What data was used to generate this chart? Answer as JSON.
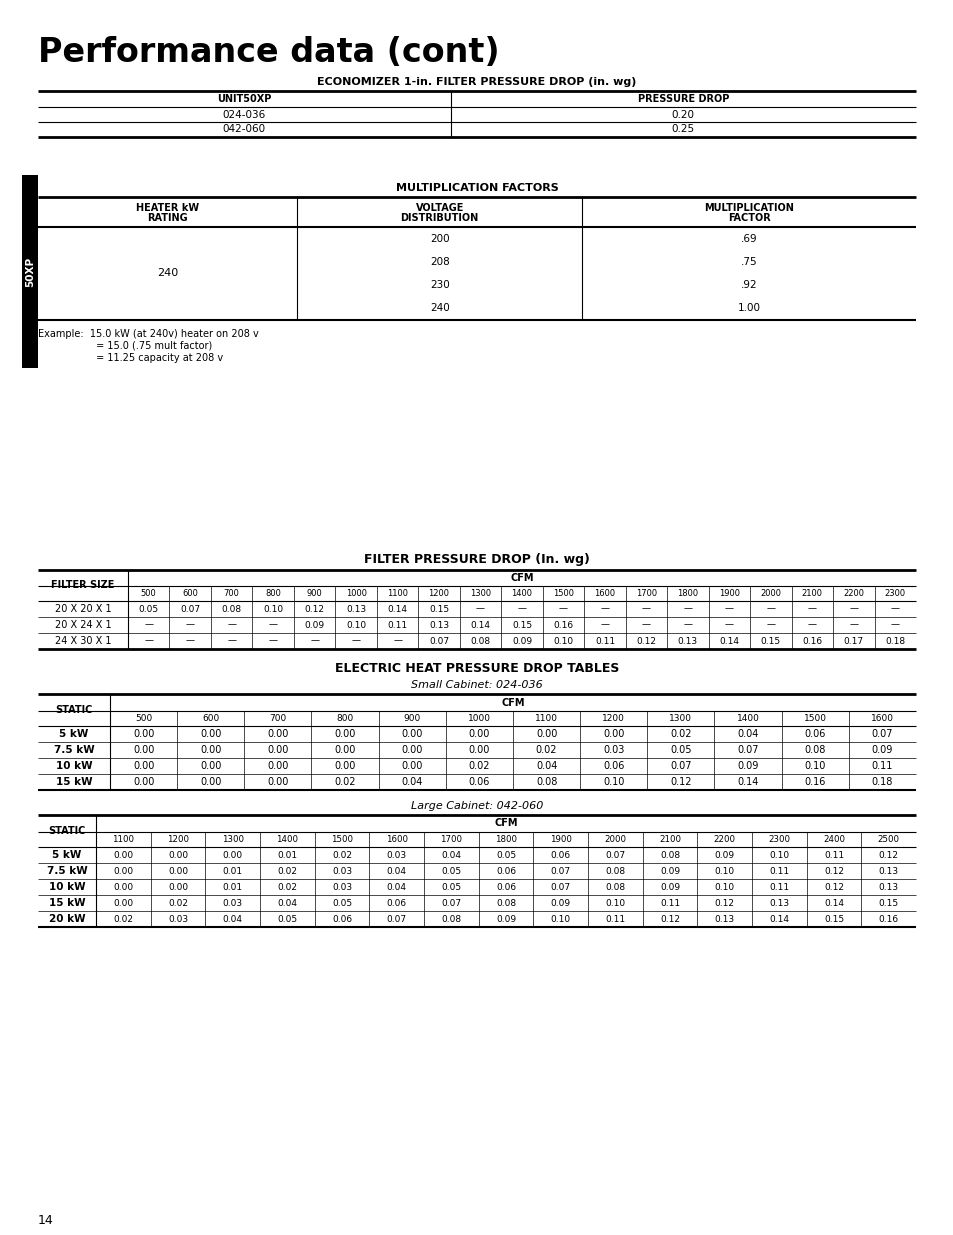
{
  "title": "Performance data (cont)",
  "page_number": "14",
  "section1_title": "ECONOMIZER 1-in. FILTER PRESSURE DROP (in. wg)",
  "econ_headers": [
    "UNIT50XP",
    "PRESSURE DROP"
  ],
  "econ_rows": [
    [
      "024-036",
      "0.20"
    ],
    [
      "042-060",
      "0.25"
    ]
  ],
  "sidebar_label": "50XP",
  "mult_title": "MULTIPLICATION FACTORS",
  "mult_data": {
    "heater_kw": "240",
    "voltages": [
      "200",
      "208",
      "230",
      "240"
    ],
    "factors": [
      ".69",
      ".75",
      ".92",
      "1.00"
    ]
  },
  "mult_example_line1": "Example:  15.0 kW (at 240v) heater on 208 v",
  "mult_example_line2": "         = 15.0 (.75 mult factor)",
  "mult_example_line3": "         = 11.25 capacity at 208 v",
  "filter_title": "FILTER PRESSURE DROP (In. wg)",
  "filter_cfm_cols": [
    "500",
    "600",
    "700",
    "800",
    "900",
    "1000",
    "1100",
    "1200",
    "1300",
    "1400",
    "1500",
    "1600",
    "1700",
    "1800",
    "1900",
    "2000",
    "2100",
    "2200",
    "2300"
  ],
  "filter_rows": [
    {
      "size": "20 X 20 X 1",
      "values": [
        "0.05",
        "0.07",
        "0.08",
        "0.10",
        "0.12",
        "0.13",
        "0.14",
        "0.15",
        "—",
        "—",
        "—",
        "—",
        "—",
        "—",
        "—",
        "—",
        "—",
        "—",
        "—"
      ]
    },
    {
      "size": "20 X 24 X 1",
      "values": [
        "—",
        "—",
        "—",
        "—",
        "0.09",
        "0.10",
        "0.11",
        "0.13",
        "0.14",
        "0.15",
        "0.16",
        "—",
        "—",
        "—",
        "—",
        "—",
        "—",
        "—",
        "—"
      ]
    },
    {
      "size": "24 X 30 X 1",
      "values": [
        "—",
        "—",
        "—",
        "—",
        "—",
        "—",
        "—",
        "0.07",
        "0.08",
        "0.09",
        "0.10",
        "0.11",
        "0.12",
        "0.13",
        "0.14",
        "0.15",
        "0.16",
        "0.17",
        "0.18"
      ]
    }
  ],
  "elec_title": "ELECTRIC HEAT PRESSURE DROP TABLES",
  "small_cab_title": "Small Cabinet: 024-036",
  "small_cfm_cols": [
    "500",
    "600",
    "700",
    "800",
    "900",
    "1000",
    "1100",
    "1200",
    "1300",
    "1400",
    "1500",
    "1600"
  ],
  "small_rows": [
    {
      "label": "5 kW",
      "values": [
        "0.00",
        "0.00",
        "0.00",
        "0.00",
        "0.00",
        "0.00",
        "0.00",
        "0.00",
        "0.02",
        "0.04",
        "0.06",
        "0.07"
      ]
    },
    {
      "label": "7.5 kW",
      "values": [
        "0.00",
        "0.00",
        "0.00",
        "0.00",
        "0.00",
        "0.00",
        "0.02",
        "0.03",
        "0.05",
        "0.07",
        "0.08",
        "0.09"
      ]
    },
    {
      "label": "10 kW",
      "values": [
        "0.00",
        "0.00",
        "0.00",
        "0.00",
        "0.00",
        "0.02",
        "0.04",
        "0.06",
        "0.07",
        "0.09",
        "0.10",
        "0.11"
      ]
    },
    {
      "label": "15 kW",
      "values": [
        "0.00",
        "0.00",
        "0.00",
        "0.02",
        "0.04",
        "0.06",
        "0.08",
        "0.10",
        "0.12",
        "0.14",
        "0.16",
        "0.18"
      ]
    }
  ],
  "large_cab_title": "Large Cabinet: 042-060",
  "large_cfm_cols": [
    "1100",
    "1200",
    "1300",
    "1400",
    "1500",
    "1600",
    "1700",
    "1800",
    "1900",
    "2000",
    "2100",
    "2200",
    "2300",
    "2400",
    "2500"
  ],
  "large_rows": [
    {
      "label": "5 kW",
      "values": [
        "0.00",
        "0.00",
        "0.00",
        "0.01",
        "0.02",
        "0.03",
        "0.04",
        "0.05",
        "0.06",
        "0.07",
        "0.08",
        "0.09",
        "0.10",
        "0.11",
        "0.12"
      ]
    },
    {
      "label": "7.5 kW",
      "values": [
        "0.00",
        "0.00",
        "0.01",
        "0.02",
        "0.03",
        "0.04",
        "0.05",
        "0.06",
        "0.07",
        "0.08",
        "0.09",
        "0.10",
        "0.11",
        "0.12",
        "0.13"
      ]
    },
    {
      "label": "10 kW",
      "values": [
        "0.00",
        "0.00",
        "0.01",
        "0.02",
        "0.03",
        "0.04",
        "0.05",
        "0.06",
        "0.07",
        "0.08",
        "0.09",
        "0.10",
        "0.11",
        "0.12",
        "0.13"
      ]
    },
    {
      "label": "15 kW",
      "values": [
        "0.00",
        "0.02",
        "0.03",
        "0.04",
        "0.05",
        "0.06",
        "0.07",
        "0.08",
        "0.09",
        "0.10",
        "0.11",
        "0.12",
        "0.13",
        "0.14",
        "0.15"
      ]
    },
    {
      "label": "20 kW",
      "values": [
        "0.02",
        "0.03",
        "0.04",
        "0.05",
        "0.06",
        "0.07",
        "0.08",
        "0.09",
        "0.10",
        "0.11",
        "0.12",
        "0.13",
        "0.14",
        "0.15",
        "0.16"
      ]
    }
  ],
  "bg_color": "#ffffff"
}
